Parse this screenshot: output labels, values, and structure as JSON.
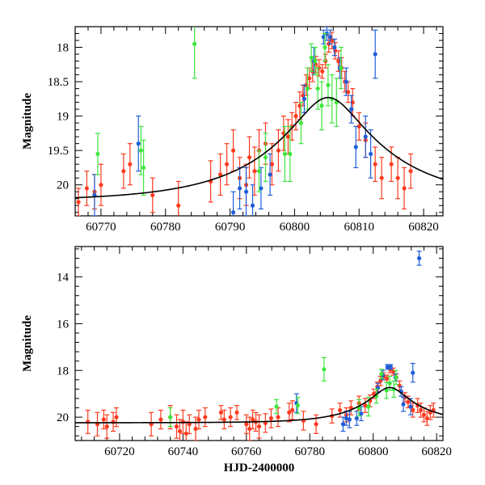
{
  "colors": {
    "red": "#ff3b1f",
    "blue": "#1f5ed8",
    "green": "#3ee63e",
    "model": "#000000"
  },
  "chart_data": [
    {
      "type": "scatter",
      "ylabel": "Magnitude",
      "xlabel": "",
      "xlim": [
        60766,
        60823
      ],
      "ylim": [
        20.45,
        17.7
      ],
      "y_inverted": true,
      "xticks": [
        60770,
        60780,
        60790,
        60800,
        60810,
        60820
      ],
      "yticks": [
        18,
        18.5,
        19,
        19.5,
        20
      ],
      "model": {
        "t0": 60805.2,
        "u0": 0.255,
        "tE": 18.5,
        "base": 20.24
      },
      "series": [
        {
          "color": "red",
          "points": [
            [
              60766.5,
              20.25,
              0.2
            ],
            [
              60767.8,
              20.05,
              0.25
            ],
            [
              60769.0,
              20.1,
              0.25
            ],
            [
              60770.0,
              20.0,
              0.3
            ],
            [
              60773.5,
              19.8,
              0.25
            ],
            [
              60774.5,
              19.7,
              0.3
            ],
            [
              60778.0,
              20.15,
              0.25
            ],
            [
              60782.0,
              20.3,
              0.35
            ],
            [
              60787.0,
              19.95,
              0.3
            ],
            [
              60788.5,
              19.85,
              0.3
            ],
            [
              60789.5,
              19.7,
              0.3
            ],
            [
              60790.5,
              19.5,
              0.3
            ],
            [
              60791.5,
              19.9,
              0.3
            ],
            [
              60792.5,
              20.0,
              0.3
            ],
            [
              60793.0,
              19.6,
              0.3
            ],
            [
              60793.8,
              19.8,
              0.35
            ],
            [
              60794.5,
              19.5,
              0.3
            ],
            [
              60795.5,
              19.4,
              0.3
            ],
            [
              60796.5,
              19.7,
              0.3
            ],
            [
              60797.5,
              19.5,
              0.3
            ],
            [
              60798.3,
              19.25,
              0.25
            ],
            [
              60799.0,
              19.3,
              0.25
            ],
            [
              60799.6,
              19.15,
              0.2
            ],
            [
              60800.2,
              19.0,
              0.2
            ],
            [
              60800.8,
              18.85,
              0.2
            ],
            [
              60801.3,
              18.7,
              0.15
            ],
            [
              60801.8,
              18.55,
              0.15
            ],
            [
              60802.3,
              18.45,
              0.15
            ],
            [
              60802.8,
              18.35,
              0.15
            ],
            [
              60803.3,
              18.25,
              0.12
            ],
            [
              60803.8,
              18.3,
              0.12
            ],
            [
              60804.3,
              18.35,
              0.1
            ],
            [
              60804.8,
              18.2,
              0.1
            ],
            [
              60805.3,
              17.95,
              0.12
            ],
            [
              60805.8,
              17.9,
              0.12
            ],
            [
              60806.3,
              18.05,
              0.12
            ],
            [
              60806.8,
              18.2,
              0.15
            ],
            [
              60807.3,
              18.3,
              0.15
            ],
            [
              60807.8,
              18.5,
              0.15
            ],
            [
              60808.3,
              18.65,
              0.15
            ],
            [
              60809.0,
              18.8,
              0.2
            ],
            [
              60810.0,
              19.15,
              0.2
            ],
            [
              60811.0,
              19.35,
              0.25
            ],
            [
              60812.5,
              19.7,
              0.25
            ],
            [
              60813.5,
              19.9,
              0.3
            ],
            [
              60815.0,
              19.7,
              0.25
            ],
            [
              60816.0,
              19.9,
              0.3
            ],
            [
              60817.0,
              20.05,
              0.3
            ],
            [
              60818.0,
              19.8,
              0.25
            ]
          ]
        },
        {
          "color": "blue",
          "points": [
            [
              60769.0,
              20.15,
              0.3
            ],
            [
              60775.8,
              19.4,
              0.4
            ],
            [
              60790.5,
              20.4,
              0.3
            ],
            [
              60791.5,
              20.05,
              0.3
            ],
            [
              60792.5,
              20.1,
              0.35
            ],
            [
              60793.5,
              20.3,
              0.3
            ],
            [
              60794.8,
              20.05,
              0.3
            ],
            [
              60796.2,
              19.85,
              0.3
            ],
            [
              60801.5,
              18.75,
              0.2
            ],
            [
              60803.0,
              18.2,
              0.2
            ],
            [
              60804.5,
              17.85,
              0.1
            ],
            [
              60805.0,
              17.8,
              0.1
            ],
            [
              60805.5,
              17.85,
              0.1
            ],
            [
              60806.2,
              18.0,
              0.12
            ],
            [
              60807.0,
              18.3,
              0.15
            ],
            [
              60808.0,
              18.5,
              0.2
            ],
            [
              60808.8,
              18.9,
              0.2
            ],
            [
              60809.5,
              19.45,
              0.3
            ],
            [
              60811.0,
              19.3,
              0.3
            ],
            [
              60811.8,
              19.55,
              0.35
            ],
            [
              60812.5,
              18.1,
              0.35
            ]
          ]
        },
        {
          "color": "green",
          "points": [
            [
              60769.5,
              19.55,
              0.3
            ],
            [
              60776.2,
              19.5,
              0.35
            ],
            [
              60776.6,
              19.75,
              0.4
            ],
            [
              60784.5,
              17.95,
              0.5
            ],
            [
              60794.5,
              19.8,
              0.3
            ],
            [
              60795.5,
              19.6,
              0.35
            ],
            [
              60798.5,
              19.55,
              0.4
            ],
            [
              60799.3,
              19.55,
              0.4
            ],
            [
              60801.0,
              19.1,
              0.3
            ],
            [
              60802.0,
              18.6,
              0.3
            ],
            [
              60802.6,
              18.15,
              0.2
            ],
            [
              60803.2,
              18.2,
              0.2
            ],
            [
              60803.6,
              18.6,
              0.3
            ],
            [
              60804.2,
              18.85,
              0.35
            ],
            [
              60804.7,
              18.0,
              0.2
            ],
            [
              60805.2,
              18.55,
              0.3
            ],
            [
              60805.8,
              18.75,
              0.35
            ],
            [
              60806.5,
              18.8,
              0.35
            ],
            [
              60807.2,
              18.3,
              0.3
            ]
          ]
        }
      ]
    },
    {
      "type": "scatter",
      "ylabel": "Magnitude",
      "xlabel": "HJD-2400000",
      "xlim": [
        60706,
        60822
      ],
      "ylim": [
        21.0,
        12.7
      ],
      "y_inverted": true,
      "xticks": [
        60720,
        60740,
        60760,
        60780,
        60800,
        60820
      ],
      "yticks": [
        14,
        16,
        18,
        20
      ],
      "model": {
        "t0": 60805.2,
        "u0": 0.255,
        "tE": 18.5,
        "base": 20.24
      },
      "series": [
        {
          "color": "red",
          "points": [
            [
              60710,
              20.2,
              0.5
            ],
            [
              60713,
              20.3,
              0.5
            ],
            [
              60715,
              20.1,
              0.4
            ],
            [
              60716,
              20.4,
              0.5
            ],
            [
              60718,
              20.2,
              0.4
            ],
            [
              60719,
              20.0,
              0.4
            ],
            [
              60730,
              20.3,
              0.5
            ],
            [
              60733,
              20.1,
              0.4
            ],
            [
              60736,
              20.0,
              0.5
            ],
            [
              60738,
              20.4,
              0.5
            ],
            [
              60739,
              20.6,
              0.5
            ],
            [
              60740,
              20.2,
              0.5
            ],
            [
              60741,
              20.7,
              0.5
            ],
            [
              60742,
              20.3,
              0.4
            ],
            [
              60744,
              20.5,
              0.5
            ],
            [
              60745,
              20.1,
              0.4
            ],
            [
              60747,
              20.0,
              0.4
            ],
            [
              60752,
              19.8,
              0.3
            ],
            [
              60753,
              20.1,
              0.4
            ],
            [
              60755,
              20.0,
              0.4
            ],
            [
              60757,
              19.8,
              0.3
            ],
            [
              60760,
              20.3,
              0.4
            ],
            [
              60761,
              20.5,
              0.5
            ],
            [
              60762,
              20.1,
              0.4
            ],
            [
              60763,
              20.2,
              0.4
            ],
            [
              60764,
              20.4,
              0.5
            ],
            [
              60766,
              20.25,
              0.4
            ],
            [
              60767.8,
              20.05,
              0.4
            ],
            [
              60770,
              20.0,
              0.4
            ],
            [
              60773.5,
              19.8,
              0.4
            ],
            [
              60774.5,
              19.7,
              0.4
            ],
            [
              60778,
              20.15,
              0.4
            ],
            [
              60782,
              20.3,
              0.4
            ],
            [
              60787,
              19.95,
              0.3
            ],
            [
              60789.5,
              19.7,
              0.3
            ],
            [
              60791.5,
              19.9,
              0.3
            ],
            [
              60793,
              19.6,
              0.3
            ],
            [
              60795.5,
              19.4,
              0.3
            ],
            [
              60797.5,
              19.5,
              0.3
            ],
            [
              60799,
              19.3,
              0.25
            ],
            [
              60800.2,
              19.0,
              0.2
            ],
            [
              60801.3,
              18.7,
              0.2
            ],
            [
              60802.3,
              18.45,
              0.2
            ],
            [
              60803.3,
              18.25,
              0.15
            ],
            [
              60804.3,
              18.35,
              0.15
            ],
            [
              60805.3,
              17.95,
              0.15
            ],
            [
              60806.3,
              18.05,
              0.15
            ],
            [
              60807.3,
              18.3,
              0.15
            ],
            [
              60808.3,
              18.65,
              0.2
            ],
            [
              60810,
              19.15,
              0.2
            ],
            [
              60811,
              19.35,
              0.25
            ],
            [
              60812.5,
              19.7,
              0.3
            ],
            [
              60814,
              19.5,
              0.3
            ],
            [
              60815,
              19.7,
              0.3
            ],
            [
              60816,
              19.9,
              0.3
            ],
            [
              60817,
              20.05,
              0.3
            ],
            [
              60818,
              19.8,
              0.3
            ],
            [
              60819,
              19.7,
              0.3
            ]
          ]
        },
        {
          "color": "blue",
          "points": [
            [
              60775.8,
              19.4,
              0.4
            ],
            [
              60790.5,
              20.3,
              0.3
            ],
            [
              60791.5,
              20.05,
              0.3
            ],
            [
              60792.5,
              20.1,
              0.35
            ],
            [
              60794.8,
              20.05,
              0.3
            ],
            [
              60796.2,
              19.85,
              0.3
            ],
            [
              60801.5,
              18.75,
              0.2
            ],
            [
              60803,
              18.2,
              0.2
            ],
            [
              60804.5,
              17.85,
              0.1
            ],
            [
              60805.5,
              17.85,
              0.1
            ],
            [
              60807,
              18.3,
              0.15
            ],
            [
              60808.8,
              18.9,
              0.2
            ],
            [
              60809.5,
              19.45,
              0.3
            ],
            [
              60811.8,
              19.55,
              0.35
            ],
            [
              60812.5,
              18.1,
              0.4
            ],
            [
              60814.5,
              13.2,
              0.3
            ]
          ]
        },
        {
          "color": "green",
          "points": [
            [
              60736,
              20.0,
              0.4
            ],
            [
              60769.5,
              19.55,
              0.3
            ],
            [
              60776.2,
              19.5,
              0.35
            ],
            [
              60784.5,
              17.95,
              0.5
            ],
            [
              60795.5,
              19.6,
              0.35
            ],
            [
              60798.5,
              19.55,
              0.4
            ],
            [
              60801,
              19.1,
              0.3
            ],
            [
              60802.6,
              18.15,
              0.2
            ],
            [
              60804.2,
              18.85,
              0.35
            ],
            [
              60805.2,
              18.55,
              0.3
            ],
            [
              60806.5,
              18.8,
              0.35
            ],
            [
              60807.2,
              18.3,
              0.3
            ]
          ]
        }
      ]
    }
  ]
}
